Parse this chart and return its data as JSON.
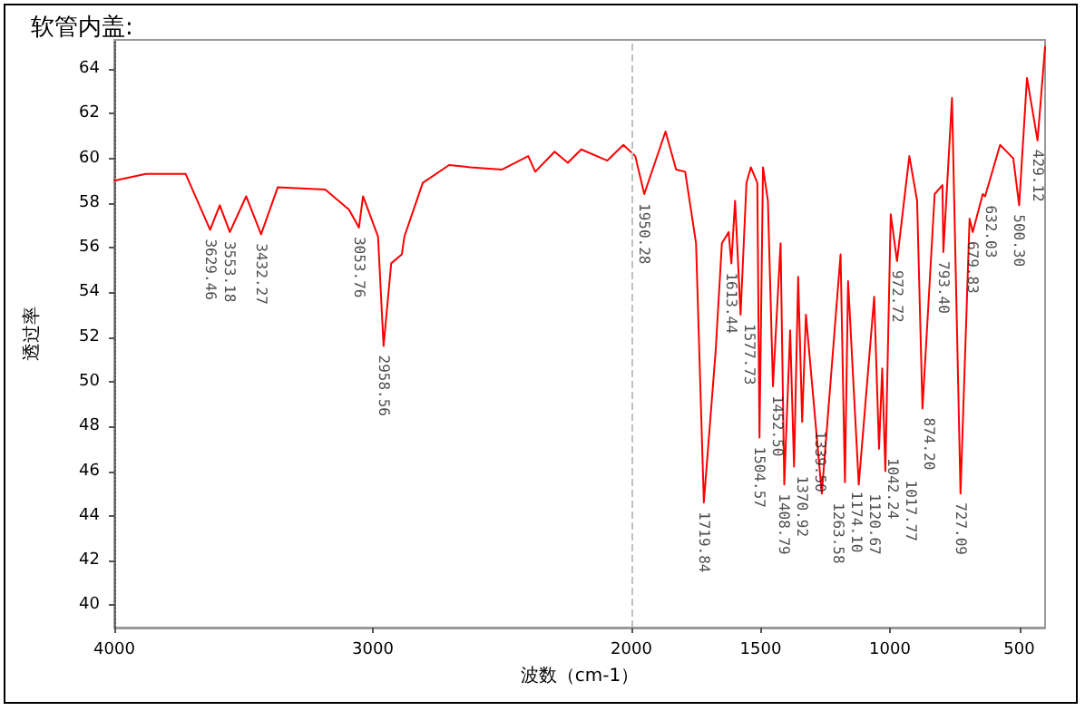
{
  "chart_data": {
    "type": "line",
    "title": "软管内盖:",
    "xlabel": "波数（cm-1）",
    "ylabel": "透过率",
    "x": [
      4000,
      3878,
      3724,
      3629.46,
      3592,
      3553.18,
      3490,
      3432.27,
      3368,
      3184,
      3092,
      3053.76,
      3038,
      2980,
      2958.56,
      2929,
      2888,
      2878,
      2807,
      2705,
      2623,
      2500,
      2399,
      2372,
      2297,
      2246,
      2194,
      2093,
      2031,
      1985,
      1950.28,
      1868,
      1827,
      1792,
      1750,
      1719.84,
      1674,
      1650,
      1624,
      1613.44,
      1599,
      1577.73,
      1555,
      1538,
      1513,
      1504.57,
      1491,
      1472,
      1452.5,
      1423,
      1408.79,
      1386,
      1370.92,
      1355,
      1339.5,
      1325,
      1263.58,
      1191,
      1174.1,
      1162,
      1120.67,
      1061,
      1042.24,
      1030,
      1017.77,
      997,
      972.72,
      925,
      895,
      874.2,
      827,
      797,
      793.4,
      760,
      727.09,
      692,
      679.83,
      641,
      632.03,
      574,
      523,
      500.3,
      470,
      429.12,
      400
    ],
    "series": [
      {
        "color": "#ff0000",
        "values": [
          59.0,
          59.3,
          59.3,
          56.8,
          57.9,
          56.7,
          58.3,
          56.6,
          58.7,
          58.6,
          57.7,
          56.9,
          58.3,
          56.5,
          51.6,
          55.3,
          55.7,
          56.5,
          58.9,
          59.7,
          59.6,
          59.5,
          60.1,
          59.4,
          60.3,
          59.8,
          60.4,
          59.9,
          60.6,
          60.1,
          58.4,
          61.2,
          59.5,
          59.4,
          56.2,
          44.6,
          51.4,
          56.2,
          56.7,
          55.3,
          58.1,
          53.0,
          58.9,
          59.6,
          58.9,
          47.5,
          59.6,
          58.1,
          49.8,
          56.2,
          45.4,
          52.3,
          46.2,
          54.7,
          48.2,
          53.0,
          45.0,
          55.7,
          45.5,
          54.5,
          45.4,
          53.8,
          47.0,
          50.6,
          46.0,
          57.5,
          55.4,
          60.1,
          58.1,
          48.8,
          58.4,
          58.8,
          55.8,
          62.7,
          45.0,
          57.3,
          56.7,
          58.4,
          58.3,
          60.6,
          60.0,
          57.9,
          63.6,
          60.8,
          65.0
        ]
      }
    ],
    "xlim": [
      4000,
      400
    ],
    "xticks": [
      4000,
      3000,
      2000,
      1500,
      1000,
      500
    ],
    "ylim": [
      39,
      65.3
    ],
    "yticks": [
      40,
      42,
      44,
      46,
      48,
      50,
      52,
      54,
      56,
      58,
      60,
      62,
      64
    ],
    "grid": false,
    "marker": "none",
    "line_style": "solid",
    "ref_lines": [
      {
        "axis": "x",
        "value": 2000,
        "color": "#c0c0c0",
        "line_style": "dashed"
      }
    ],
    "annotations": [
      {
        "text": "3629.46",
        "x": 3629.46,
        "y": 56.8
      },
      {
        "text": "3553.18",
        "x": 3553.18,
        "y": 56.7
      },
      {
        "text": "3432.27",
        "x": 3432.27,
        "y": 56.6
      },
      {
        "text": "3053.76",
        "x": 3053.76,
        "y": 56.9
      },
      {
        "text": "2958.56",
        "x": 2958.56,
        "y": 51.6
      },
      {
        "text": "1950.28",
        "x": 1950.28,
        "y": 58.4
      },
      {
        "text": "1719.84",
        "x": 1719.84,
        "y": 44.6
      },
      {
        "text": "1613.44",
        "x": 1613.44,
        "y": 55.3
      },
      {
        "text": "1577.73",
        "x": 1577.73,
        "y": 53.0
      },
      {
        "text": "1504.57",
        "x": 1504.57,
        "y": 47.5
      },
      {
        "text": "1452.50",
        "x": 1452.5,
        "y": 49.8
      },
      {
        "text": "1408.79",
        "x": 1408.79,
        "y": 45.4
      },
      {
        "text": "1370.92",
        "x": 1370.92,
        "y": 46.2
      },
      {
        "text": "1339.50",
        "x": 1339.5,
        "y": 48.2
      },
      {
        "text": "1263.58",
        "x": 1263.58,
        "y": 45.0
      },
      {
        "text": "1174.10",
        "x": 1174.1,
        "y": 45.5
      },
      {
        "text": "1120.67",
        "x": 1120.67,
        "y": 45.4
      },
      {
        "text": "1042.24",
        "x": 1042.24,
        "y": 47.0
      },
      {
        "text": "1017.77",
        "x": 1017.77,
        "y": 46.0
      },
      {
        "text": "972.72",
        "x": 972.72,
        "y": 55.4
      },
      {
        "text": "874.20",
        "x": 874.2,
        "y": 48.8
      },
      {
        "text": "793.40",
        "x": 793.4,
        "y": 55.8
      },
      {
        "text": "727.09",
        "x": 727.09,
        "y": 45.0
      },
      {
        "text": "679.83",
        "x": 679.83,
        "y": 56.7
      },
      {
        "text": "632.03",
        "x": 632.03,
        "y": 58.3
      },
      {
        "text": "500.30",
        "x": 500.3,
        "y": 57.9
      },
      {
        "text": "429.12",
        "x": 429.12,
        "y": 60.8
      }
    ]
  }
}
